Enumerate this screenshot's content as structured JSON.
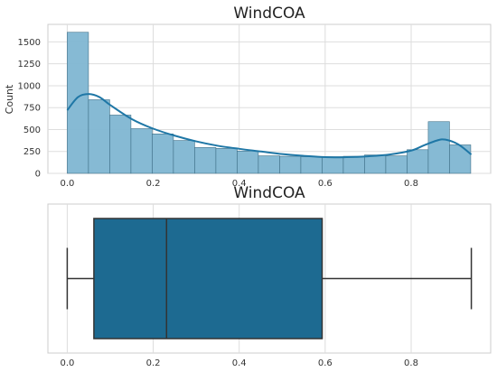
{
  "chart_data": [
    {
      "type": "bar",
      "subtype": "histogram-with-kde",
      "title": "WindCOA",
      "xlabel": "",
      "ylabel": "Count",
      "xlim": [
        -0.045,
        0.985
      ],
      "ylim": [
        0,
        1700
      ],
      "grid": true,
      "bar_color": "#7fb6d2",
      "bar_edge": "#3f6f87",
      "line_color": "#1f77a6",
      "bin_edges": [
        0.0,
        0.0494,
        0.0988,
        0.1482,
        0.1976,
        0.247,
        0.2964,
        0.3458,
        0.3952,
        0.4446,
        0.494,
        0.5434,
        0.5928,
        0.6422,
        0.6916,
        0.741,
        0.7904,
        0.8398,
        0.8892,
        0.9386
      ],
      "counts": [
        1610,
        840,
        665,
        510,
        450,
        375,
        295,
        285,
        255,
        200,
        195,
        190,
        190,
        195,
        210,
        200,
        270,
        590,
        325
      ],
      "kde": {
        "x": [
          0.0,
          0.025,
          0.05,
          0.075,
          0.1,
          0.15,
          0.2,
          0.25,
          0.3,
          0.35,
          0.4,
          0.45,
          0.5,
          0.55,
          0.6,
          0.65,
          0.7,
          0.75,
          0.8,
          0.83,
          0.86,
          0.88,
          0.91,
          0.94
        ],
        "y": [
          720,
          870,
          905,
          870,
          780,
          620,
          510,
          430,
          365,
          315,
          280,
          250,
          220,
          200,
          185,
          185,
          195,
          215,
          260,
          320,
          375,
          385,
          330,
          215
        ]
      },
      "xticks": [
        0.0,
        0.2,
        0.4,
        0.6,
        0.8
      ],
      "xtick_labels": [
        "0.0",
        "0.2",
        "0.4",
        "0.6",
        "0.8"
      ],
      "yticks": [
        0,
        250,
        500,
        750,
        1000,
        1250,
        1500
      ],
      "ytick_labels": [
        "0",
        "250",
        "500",
        "750",
        "1000",
        "1250",
        "1500"
      ]
    },
    {
      "type": "boxplot",
      "title": "WindCOA",
      "xlim": [
        -0.045,
        0.985
      ],
      "grid": true,
      "box_color": "#1d6a91",
      "whisker_low": 0.0,
      "q1": 0.062,
      "median": 0.231,
      "q3": 0.593,
      "whisker_high": 0.94,
      "xticks": [
        0.0,
        0.2,
        0.4,
        0.6,
        0.8
      ],
      "xtick_labels": [
        "0.0",
        "0.2",
        "0.4",
        "0.6",
        "0.8"
      ]
    }
  ]
}
